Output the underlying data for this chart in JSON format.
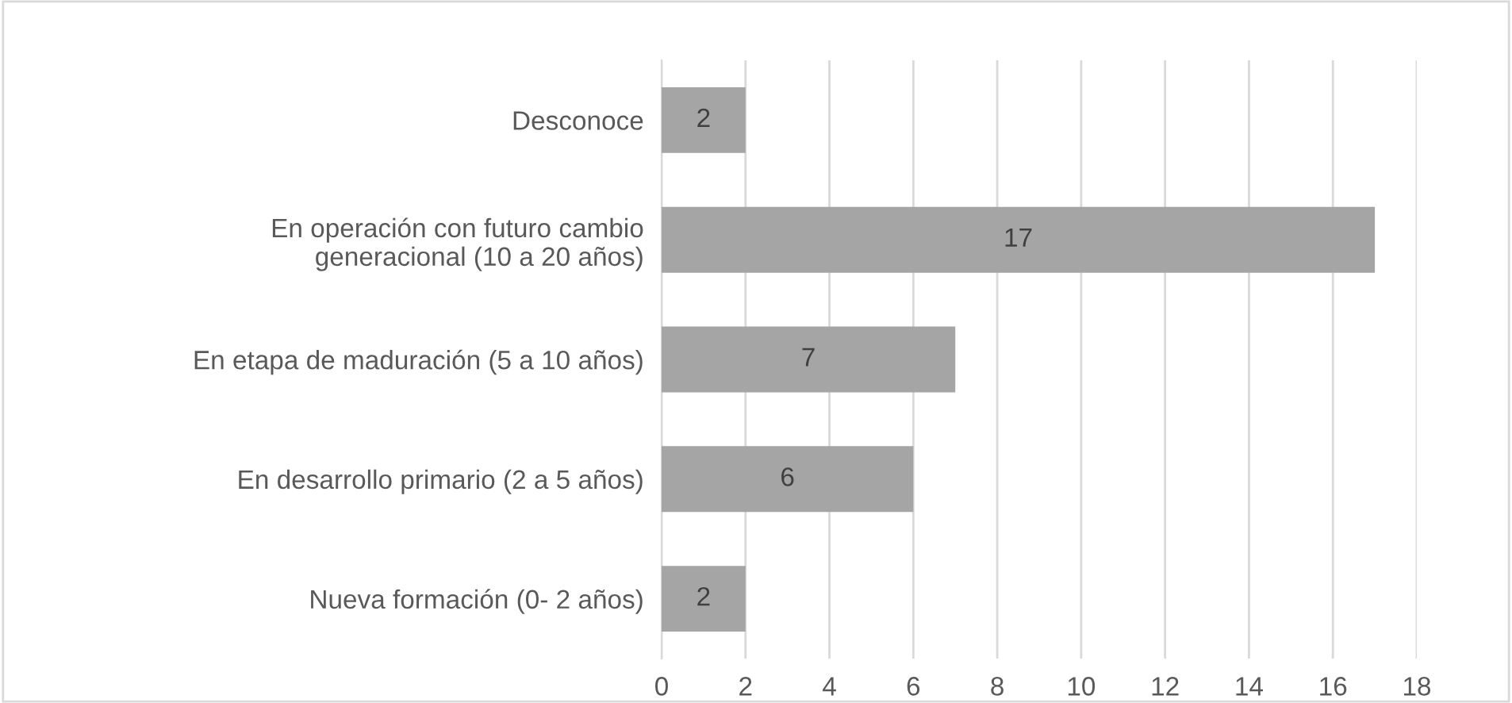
{
  "chart_data": {
    "type": "bar",
    "orientation": "horizontal",
    "categories": [
      "Desconoce",
      "En operación con futuro cambio\ngeneracional (10 a 20 años)",
      "En etapa de maduración (5 a 10 años)",
      "En desarrollo primario (2 a 5 años)",
      "Nueva formación (0- 2 años)"
    ],
    "values": [
      2,
      17,
      7,
      6,
      2
    ],
    "color": "#a5a5a5",
    "xlim": [
      0,
      18
    ],
    "xticks": [
      0,
      2,
      4,
      6,
      8,
      10,
      12,
      14,
      16,
      18
    ],
    "grid": "x",
    "data_labels": true
  }
}
